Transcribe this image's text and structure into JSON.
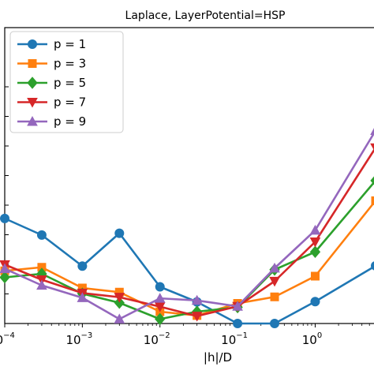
{
  "chart_data": {
    "type": "line",
    "title": "Laplace, LayerPotential=HSP",
    "xlabel": "|h|/D",
    "ylabel": "",
    "x_scale": "log",
    "xlim": [
      0.0001,
      6
    ],
    "ylim": [
      0,
      1.0
    ],
    "x_ticks": [
      {
        "value": 0.0001,
        "base": "10",
        "exp": "−4"
      },
      {
        "value": 0.001,
        "base": "10",
        "exp": "−3"
      },
      {
        "value": 0.01,
        "base": "10",
        "exp": "−2"
      },
      {
        "value": 0.1,
        "base": "10",
        "exp": "−1"
      },
      {
        "value": 1,
        "base": "10",
        "exp": "0"
      }
    ],
    "y_ticks": [
      0.0,
      0.1,
      0.2,
      0.3,
      0.4,
      0.5,
      0.6,
      0.7,
      0.8
    ],
    "y_tick_labels_visible": false,
    "legend_position": "upper-left",
    "x": [
      0.0001,
      0.0003,
      0.001,
      0.003,
      0.01,
      0.03,
      0.1,
      0.3,
      1,
      6
    ],
    "series": [
      {
        "name": "p = 1",
        "color": "#1f77b4",
        "marker": "circle",
        "values": [
          0.355,
          0.299,
          0.194,
          0.305,
          0.124,
          0.073,
          0.0,
          0.0,
          0.074,
          0.195
        ]
      },
      {
        "name": "p = 3",
        "color": "#ff7f0e",
        "marker": "square",
        "values": [
          0.178,
          0.19,
          0.12,
          0.106,
          0.04,
          0.027,
          0.068,
          0.09,
          0.16,
          0.415
        ]
      },
      {
        "name": "p = 5",
        "color": "#2ca02c",
        "marker": "diamond",
        "values": [
          0.156,
          0.168,
          0.101,
          0.07,
          0.015,
          0.04,
          0.055,
          0.182,
          0.242,
          0.483
        ]
      },
      {
        "name": "p = 7",
        "color": "#d62728",
        "marker": "triangle-down",
        "values": [
          0.199,
          0.148,
          0.103,
          0.089,
          0.057,
          0.025,
          0.058,
          0.143,
          0.276,
          0.594
        ]
      },
      {
        "name": "p = 9",
        "color": "#9467bd",
        "marker": "triangle-up",
        "values": [
          0.185,
          0.129,
          0.087,
          0.015,
          0.085,
          0.078,
          0.058,
          0.187,
          0.315,
          0.652
        ]
      }
    ]
  }
}
